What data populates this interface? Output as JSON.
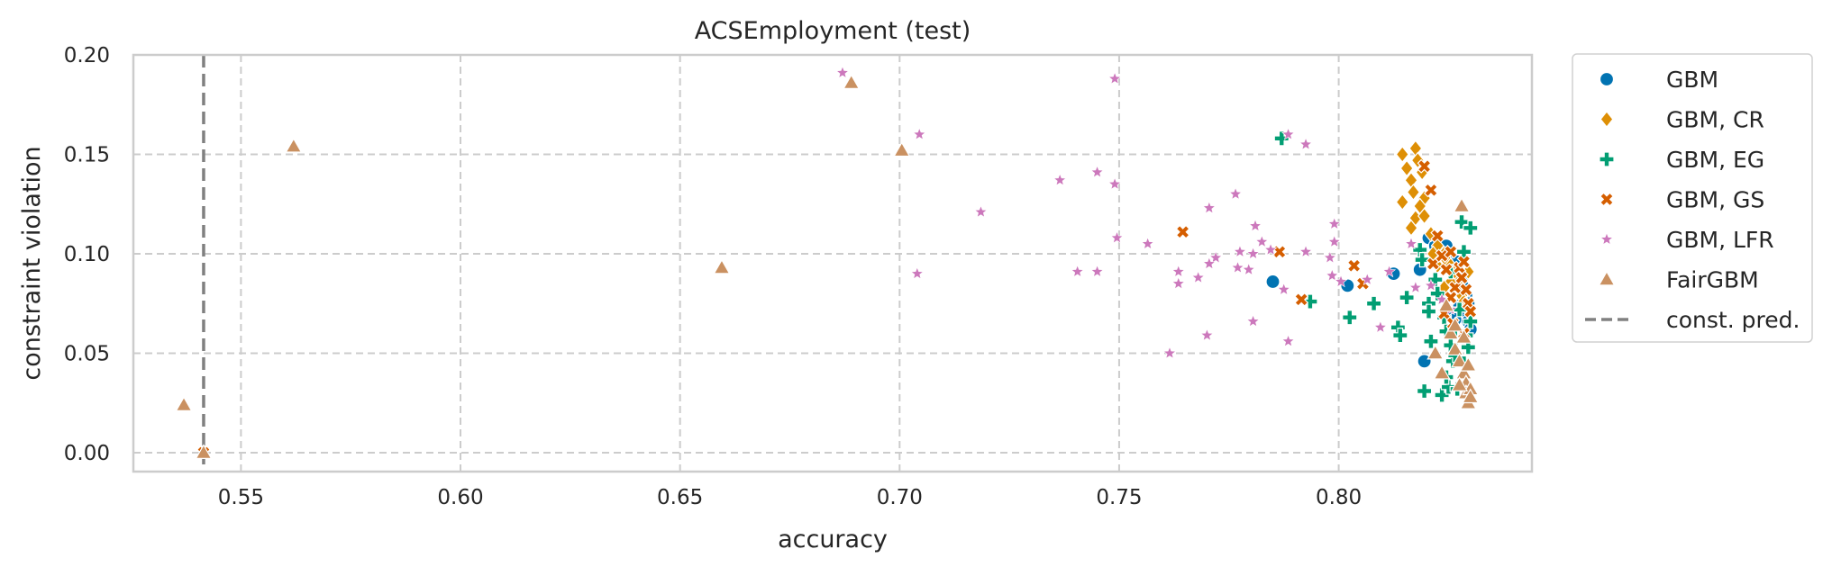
{
  "chart_data": {
    "type": "scatter",
    "title": "ACSEmployment (test)",
    "xlabel": "accuracy",
    "ylabel": "constraint violation",
    "xlim": [
      0.5255,
      0.844
    ],
    "ylim": [
      -0.0095,
      0.2
    ],
    "xticks": [
      0.55,
      0.6,
      0.65,
      0.7,
      0.75,
      0.8
    ],
    "xtick_labels": [
      "0.55",
      "0.60",
      "0.65",
      "0.70",
      "0.75",
      "0.80"
    ],
    "yticks": [
      0.0,
      0.05,
      0.1,
      0.15,
      0.2
    ],
    "ytick_labels": [
      "0.00",
      "0.05",
      "0.10",
      "0.15",
      "0.20"
    ],
    "grid": true,
    "legend_position": "outside-right",
    "reference_lines": [
      {
        "name": "const. pred.",
        "orientation": "vertical",
        "x": 0.5415,
        "color": "#808080",
        "style": "dashed"
      }
    ],
    "series": [
      {
        "name": "GBM",
        "marker": "circle",
        "color": "#0173b2",
        "points": [
          [
            0.785,
            0.086
          ],
          [
            0.802,
            0.084
          ],
          [
            0.8125,
            0.09
          ],
          [
            0.8185,
            0.092
          ],
          [
            0.8195,
            0.046
          ],
          [
            0.8205,
            0.108
          ],
          [
            0.822,
            0.104
          ],
          [
            0.8235,
            0.1
          ],
          [
            0.8245,
            0.098
          ],
          [
            0.825,
            0.102
          ],
          [
            0.826,
            0.094
          ],
          [
            0.8265,
            0.09
          ],
          [
            0.8275,
            0.086
          ],
          [
            0.8285,
            0.083
          ],
          [
            0.829,
            0.079
          ],
          [
            0.8255,
            0.07
          ],
          [
            0.8265,
            0.067
          ],
          [
            0.8275,
            0.074
          ],
          [
            0.829,
            0.071
          ],
          [
            0.8295,
            0.066
          ],
          [
            0.83,
            0.062
          ],
          [
            0.8295,
            0.075
          ],
          [
            0.8285,
            0.089
          ],
          [
            0.827,
            0.096
          ],
          [
            0.8245,
            0.104
          ]
        ]
      },
      {
        "name": "GBM, CR",
        "marker": "diamond",
        "color": "#de8f05",
        "points": [
          [
            0.8145,
            0.15
          ],
          [
            0.8155,
            0.143
          ],
          [
            0.8165,
            0.137
          ],
          [
            0.817,
            0.131
          ],
          [
            0.8175,
            0.153
          ],
          [
            0.818,
            0.147
          ],
          [
            0.819,
            0.141
          ],
          [
            0.8195,
            0.128
          ],
          [
            0.8185,
            0.124
          ],
          [
            0.8175,
            0.118
          ],
          [
            0.8145,
            0.126
          ],
          [
            0.8165,
            0.113
          ],
          [
            0.8195,
            0.119
          ],
          [
            0.821,
            0.11
          ],
          [
            0.8225,
            0.104
          ],
          [
            0.824,
            0.1
          ],
          [
            0.8245,
            0.097
          ],
          [
            0.8255,
            0.094
          ],
          [
            0.826,
            0.091
          ],
          [
            0.8265,
            0.088
          ],
          [
            0.827,
            0.085
          ],
          [
            0.8275,
            0.082
          ],
          [
            0.828,
            0.079
          ],
          [
            0.8285,
            0.076
          ],
          [
            0.829,
            0.073
          ],
          [
            0.8295,
            0.091
          ],
          [
            0.8255,
            0.086
          ],
          [
            0.824,
            0.083
          ],
          [
            0.8215,
            0.1
          ],
          [
            0.8225,
            0.094
          ]
        ]
      },
      {
        "name": "GBM, EG",
        "marker": "plus",
        "color": "#029e73",
        "points": [
          [
            0.787,
            0.158
          ],
          [
            0.7935,
            0.076
          ],
          [
            0.8025,
            0.068
          ],
          [
            0.808,
            0.075
          ],
          [
            0.8135,
            0.063
          ],
          [
            0.814,
            0.059
          ],
          [
            0.8155,
            0.078
          ],
          [
            0.8185,
            0.102
          ],
          [
            0.819,
            0.097
          ],
          [
            0.8195,
            0.031
          ],
          [
            0.8205,
            0.075
          ],
          [
            0.8205,
            0.071
          ],
          [
            0.821,
            0.056
          ],
          [
            0.822,
            0.087
          ],
          [
            0.8225,
            0.08
          ],
          [
            0.8235,
            0.029
          ],
          [
            0.824,
            0.068
          ],
          [
            0.8245,
            0.061
          ],
          [
            0.825,
            0.033
          ],
          [
            0.8255,
            0.054
          ],
          [
            0.826,
            0.046
          ],
          [
            0.8265,
            0.049
          ],
          [
            0.827,
            0.032
          ],
          [
            0.8275,
            0.072
          ],
          [
            0.828,
            0.116
          ],
          [
            0.8285,
            0.101
          ],
          [
            0.829,
            0.059
          ],
          [
            0.8295,
            0.053
          ],
          [
            0.83,
            0.113
          ],
          [
            0.83,
            0.066
          ],
          [
            0.8245,
            0.038
          ],
          [
            0.8265,
            0.062
          ],
          [
            0.8285,
            0.045
          ],
          [
            0.8255,
            0.091
          ]
        ]
      },
      {
        "name": "GBM, GS",
        "marker": "x",
        "color": "#d55e00",
        "points": [
          [
            0.5415,
            0.0
          ],
          [
            0.7645,
            0.111
          ],
          [
            0.7865,
            0.101
          ],
          [
            0.7915,
            0.077
          ],
          [
            0.8035,
            0.094
          ],
          [
            0.8055,
            0.085
          ],
          [
            0.8195,
            0.144
          ],
          [
            0.821,
            0.132
          ],
          [
            0.8215,
            0.095
          ],
          [
            0.8225,
            0.109
          ],
          [
            0.8235,
            0.099
          ],
          [
            0.824,
            0.07
          ],
          [
            0.8245,
            0.092
          ],
          [
            0.8255,
            0.101
          ],
          [
            0.826,
            0.065
          ],
          [
            0.8265,
            0.083
          ],
          [
            0.8275,
            0.093
          ],
          [
            0.828,
            0.088
          ],
          [
            0.8285,
            0.096
          ],
          [
            0.829,
            0.082
          ],
          [
            0.8295,
            0.075
          ],
          [
            0.83,
            0.071
          ],
          [
            0.8255,
            0.078
          ],
          [
            0.8285,
            0.06
          ]
        ]
      },
      {
        "name": "GBM, LFR",
        "marker": "star",
        "color": "#cc78bc",
        "points": [
          [
            0.687,
            0.191
          ],
          [
            0.749,
            0.188
          ],
          [
            0.7045,
            0.16
          ],
          [
            0.7885,
            0.16
          ],
          [
            0.7925,
            0.155
          ],
          [
            0.7365,
            0.137
          ],
          [
            0.745,
            0.141
          ],
          [
            0.749,
            0.135
          ],
          [
            0.7765,
            0.13
          ],
          [
            0.7185,
            0.121
          ],
          [
            0.7705,
            0.123
          ],
          [
            0.781,
            0.114
          ],
          [
            0.799,
            0.115
          ],
          [
            0.7495,
            0.108
          ],
          [
            0.7565,
            0.105
          ],
          [
            0.7825,
            0.106
          ],
          [
            0.7775,
            0.101
          ],
          [
            0.7805,
            0.1
          ],
          [
            0.7845,
            0.102
          ],
          [
            0.7925,
            0.101
          ],
          [
            0.799,
            0.106
          ],
          [
            0.798,
            0.098
          ],
          [
            0.7985,
            0.089
          ],
          [
            0.8005,
            0.086
          ],
          [
            0.7795,
            0.092
          ],
          [
            0.772,
            0.098
          ],
          [
            0.7635,
            0.091
          ],
          [
            0.7405,
            0.091
          ],
          [
            0.745,
            0.091
          ],
          [
            0.704,
            0.09
          ],
          [
            0.7635,
            0.085
          ],
          [
            0.768,
            0.088
          ],
          [
            0.7705,
            0.095
          ],
          [
            0.777,
            0.093
          ],
          [
            0.7875,
            0.082
          ],
          [
            0.7805,
            0.066
          ],
          [
            0.7615,
            0.05
          ],
          [
            0.77,
            0.059
          ],
          [
            0.7885,
            0.056
          ],
          [
            0.8065,
            0.087
          ],
          [
            0.8095,
            0.063
          ],
          [
            0.8115,
            0.091
          ],
          [
            0.8165,
            0.105
          ],
          [
            0.8175,
            0.083
          ],
          [
            0.821,
            0.084
          ],
          [
            0.8235,
            0.077
          ],
          [
            0.8255,
            0.072
          ]
        ]
      },
      {
        "name": "FairGBM",
        "marker": "triangle",
        "color": "#ca9161",
        "points": [
          [
            0.537,
            0.024
          ],
          [
            0.5415,
            0.0
          ],
          [
            0.562,
            0.154
          ],
          [
            0.6595,
            0.093
          ],
          [
            0.689,
            0.186
          ],
          [
            0.7005,
            0.152
          ],
          [
            0.822,
            0.05
          ],
          [
            0.8235,
            0.04
          ],
          [
            0.8245,
            0.074
          ],
          [
            0.8255,
            0.06
          ],
          [
            0.8265,
            0.052
          ],
          [
            0.8275,
            0.046
          ],
          [
            0.828,
            0.124
          ],
          [
            0.8285,
            0.04
          ],
          [
            0.829,
            0.035
          ],
          [
            0.829,
            0.03
          ],
          [
            0.8295,
            0.025
          ],
          [
            0.83,
            0.032
          ],
          [
            0.83,
            0.028
          ],
          [
            0.8275,
            0.034
          ],
          [
            0.8285,
            0.058
          ],
          [
            0.8265,
            0.064
          ],
          [
            0.8295,
            0.044
          ]
        ]
      }
    ]
  }
}
